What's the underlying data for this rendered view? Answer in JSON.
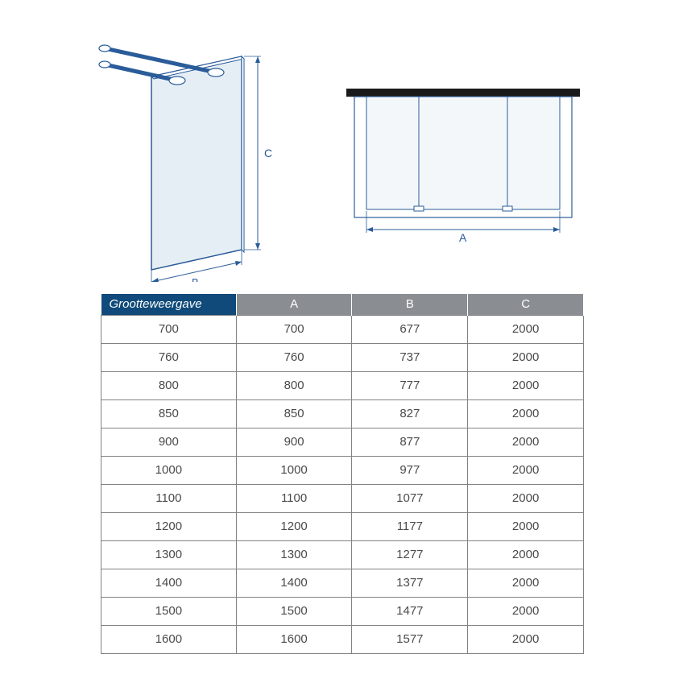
{
  "diagram": {
    "stroke": "#2a5c9a",
    "fill_glass": "#e6eef5",
    "fill_glass2": "#f4f7fa",
    "arrow_color": "#2a5c9a",
    "label_C": "C",
    "label_B": "B",
    "label_A": "A",
    "bar_color": "#1a1a1a"
  },
  "table": {
    "header_first_bg": "#0f4a7a",
    "header_rest_bg": "#8a8d91",
    "header_text_color": "#ffffff",
    "border_color": "#808285",
    "cell_text_color": "#4a4a4a",
    "columns": [
      "Grootteweergave",
      "A",
      "B",
      "C"
    ],
    "rows": [
      [
        "700",
        "700",
        "677",
        "2000"
      ],
      [
        "760",
        "760",
        "737",
        "2000"
      ],
      [
        "800",
        "800",
        "777",
        "2000"
      ],
      [
        "850",
        "850",
        "827",
        "2000"
      ],
      [
        "900",
        "900",
        "877",
        "2000"
      ],
      [
        "1000",
        "1000",
        "977",
        "2000"
      ],
      [
        "1100",
        "1100",
        "1077",
        "2000"
      ],
      [
        "1200",
        "1200",
        "1177",
        "2000"
      ],
      [
        "1300",
        "1300",
        "1277",
        "2000"
      ],
      [
        "1400",
        "1400",
        "1377",
        "2000"
      ],
      [
        "1500",
        "1500",
        "1477",
        "2000"
      ],
      [
        "1600",
        "1600",
        "1577",
        "2000"
      ]
    ]
  }
}
